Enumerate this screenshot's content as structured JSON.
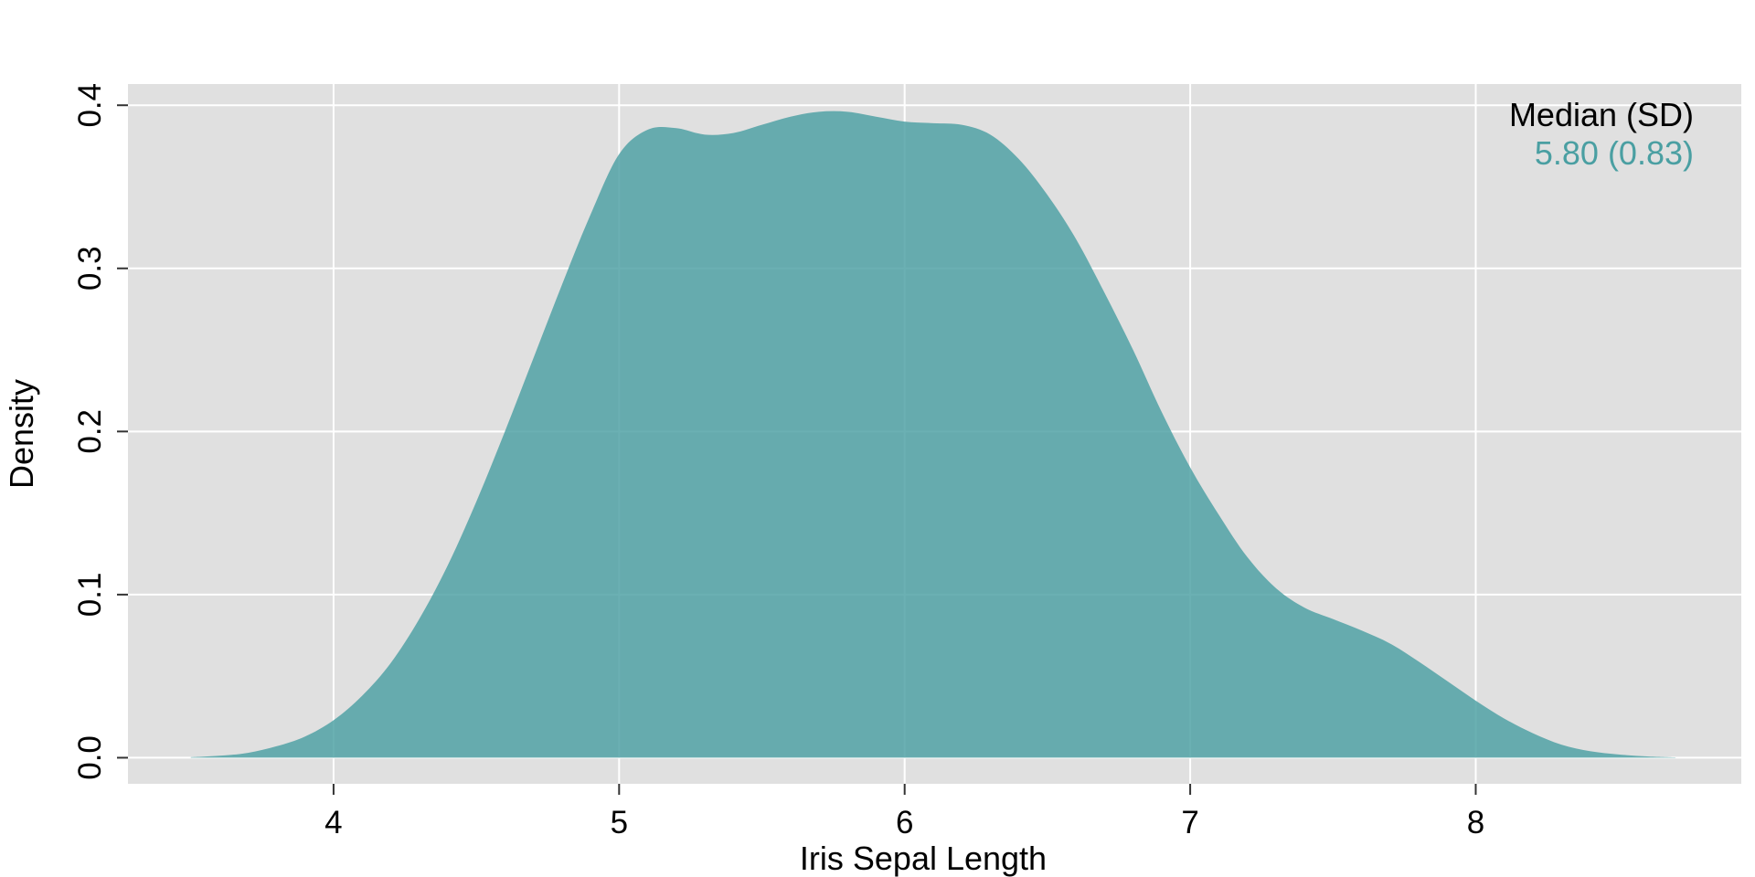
{
  "chart_data": {
    "type": "area",
    "title": "",
    "xlabel": "Iris Sepal Length",
    "ylabel": "Density",
    "xlim": [
      3.28,
      8.93
    ],
    "ylim": [
      -0.016,
      0.413
    ],
    "x_ticks": [
      4,
      5,
      6,
      7,
      8
    ],
    "x_tick_labels": [
      "4",
      "5",
      "6",
      "7",
      "8"
    ],
    "y_ticks": [
      0.0,
      0.1,
      0.2,
      0.3,
      0.4
    ],
    "y_tick_labels": [
      "0.0",
      "0.1",
      "0.2",
      "0.3",
      "0.4"
    ],
    "grid": true,
    "background": "#e0e0e0",
    "fill_color": "#4a9fa2",
    "legend": {
      "position": "top-right",
      "title": "Median (SD)",
      "value": "5.80 (0.83)"
    },
    "series": [
      {
        "x": [
          3.5,
          3.6,
          3.7,
          3.8,
          3.9,
          4.0,
          4.1,
          4.2,
          4.3,
          4.4,
          4.5,
          4.6,
          4.7,
          4.8,
          4.9,
          5.0,
          5.1,
          5.2,
          5.3,
          5.4,
          5.5,
          5.6,
          5.7,
          5.8,
          5.9,
          6.0,
          6.1,
          6.2,
          6.3,
          6.4,
          6.5,
          6.6,
          6.7,
          6.8,
          6.9,
          7.0,
          7.1,
          7.2,
          7.3,
          7.4,
          7.5,
          7.6,
          7.7,
          7.8,
          7.9,
          8.0,
          8.1,
          8.2,
          8.3,
          8.4,
          8.5,
          8.6,
          8.7
        ],
        "y": [
          0.0003,
          0.0012,
          0.003,
          0.007,
          0.013,
          0.023,
          0.038,
          0.058,
          0.085,
          0.118,
          0.157,
          0.2,
          0.245,
          0.29,
          0.333,
          0.37,
          0.385,
          0.386,
          0.382,
          0.383,
          0.388,
          0.393,
          0.396,
          0.396,
          0.393,
          0.39,
          0.389,
          0.388,
          0.382,
          0.367,
          0.345,
          0.318,
          0.285,
          0.25,
          0.212,
          0.178,
          0.149,
          0.123,
          0.104,
          0.092,
          0.085,
          0.078,
          0.07,
          0.059,
          0.047,
          0.035,
          0.024,
          0.015,
          0.008,
          0.004,
          0.002,
          0.0008,
          0.0002
        ]
      }
    ]
  }
}
